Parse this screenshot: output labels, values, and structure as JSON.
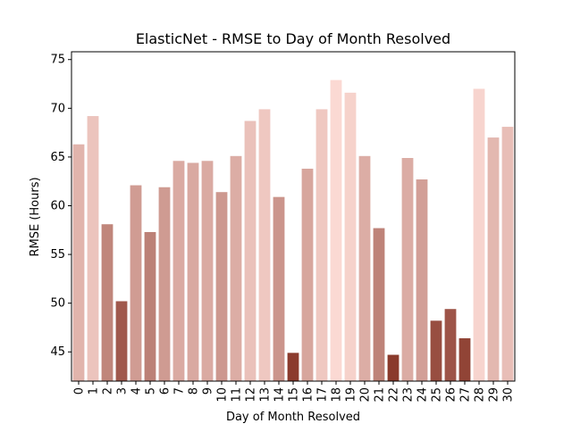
{
  "chart_data": {
    "type": "bar",
    "title": "ElasticNet - RMSE to Day of Month Resolved",
    "xlabel": "Day of Month Resolved",
    "ylabel": "RMSE (Hours)",
    "categories": [
      "0",
      "1",
      "2",
      "3",
      "4",
      "5",
      "6",
      "7",
      "8",
      "9",
      "10",
      "11",
      "12",
      "13",
      "14",
      "15",
      "16",
      "17",
      "18",
      "19",
      "20",
      "21",
      "22",
      "23",
      "24",
      "25",
      "26",
      "27",
      "28",
      "29",
      "30"
    ],
    "values": [
      66.3,
      69.2,
      58.1,
      50.2,
      62.1,
      57.3,
      61.9,
      64.6,
      64.4,
      64.6,
      61.4,
      65.1,
      68.7,
      69.9,
      60.9,
      44.9,
      63.8,
      69.9,
      72.9,
      71.6,
      65.1,
      57.7,
      44.7,
      64.9,
      62.7,
      48.2,
      49.4,
      46.4,
      72.0,
      67.0,
      68.1
    ],
    "ylim": [
      42,
      75.8
    ],
    "yticks": [
      45,
      50,
      55,
      60,
      65,
      70,
      75
    ],
    "grid": false,
    "color_low": "#8a3a2c",
    "color_high": "#fbd9d3"
  }
}
